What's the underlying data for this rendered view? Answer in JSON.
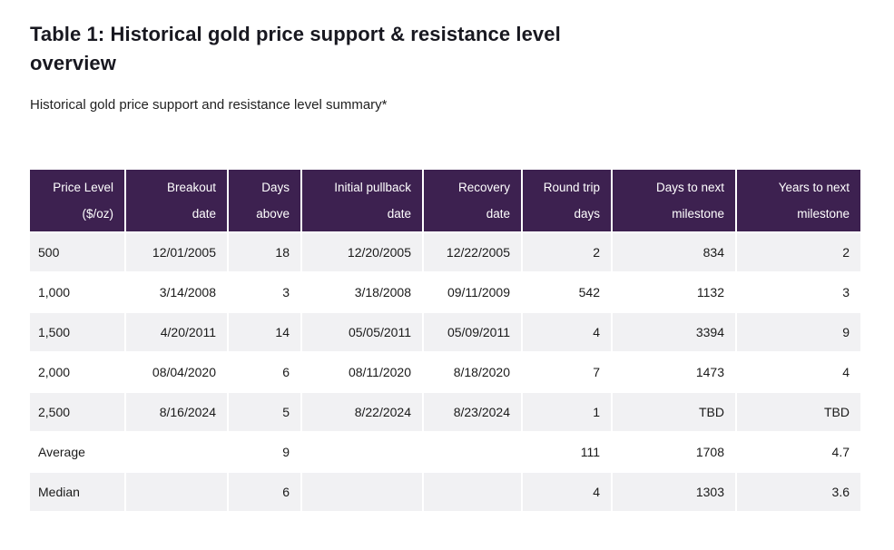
{
  "page": {
    "title": "Table 1: Historical gold price support & resistance level overview",
    "subtitle": "Historical gold price support and resistance level summary*"
  },
  "chart_data": {
    "type": "table",
    "title": "Table 1: Historical gold price support & resistance level overview",
    "subtitle": "Historical gold price support and resistance level summary*",
    "columns": [
      {
        "line1": "Price Level",
        "line2": "($/oz)"
      },
      {
        "line1": "Breakout",
        "line2": "date"
      },
      {
        "line1": "Days",
        "line2": "above"
      },
      {
        "line1": "Initial pullback",
        "line2": "date"
      },
      {
        "line1": "Recovery",
        "line2": "date"
      },
      {
        "line1": "Round trip",
        "line2": "days"
      },
      {
        "line1": "Days to next",
        "line2": "milestone"
      },
      {
        "line1": "Years to next",
        "line2": "milestone"
      }
    ],
    "rows": [
      [
        "500",
        "12/01/2005",
        "18",
        "12/20/2005",
        "12/22/2005",
        "2",
        "834",
        "2"
      ],
      [
        "1,000",
        "3/14/2008",
        "3",
        "3/18/2008",
        "09/11/2009",
        "542",
        "1132",
        "3"
      ],
      [
        "1,500",
        "4/20/2011",
        "14",
        "05/05/2011",
        "05/09/2011",
        "4",
        "3394",
        "9"
      ],
      [
        "2,000",
        "08/04/2020",
        "6",
        "08/11/2020",
        "8/18/2020",
        "7",
        "1473",
        "4"
      ],
      [
        "2,500",
        "8/16/2024",
        "5",
        "8/22/2024",
        "8/23/2024",
        "1",
        "TBD",
        "TBD"
      ],
      [
        "Average",
        "",
        "9",
        "",
        "",
        "111",
        "1708",
        "4.7"
      ],
      [
        "Median",
        "",
        "6",
        "",
        "",
        "4",
        "1303",
        "3.6"
      ]
    ]
  },
  "colors": {
    "header_bg": "#3d2150",
    "header_text": "#ffffff",
    "row_alt_bg": "#f1f1f3",
    "row_bg": "#ffffff",
    "body_text": "#1a1a1a",
    "title_text": "#181820"
  }
}
